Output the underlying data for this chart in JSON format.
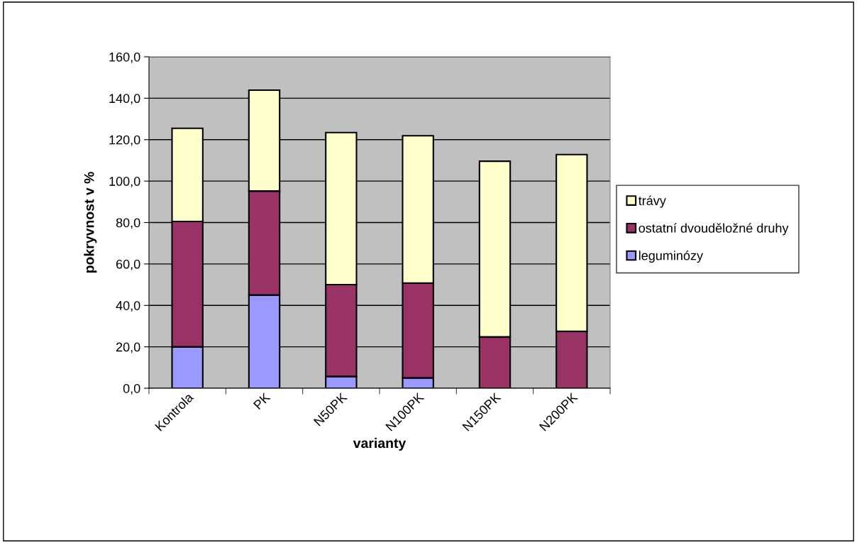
{
  "chart_data": {
    "type": "bar",
    "stacked": true,
    "xlabel": "varianty",
    "ylabel": "pokryvnost v %",
    "categories": [
      "Kontrola",
      "PK",
      "N50PK",
      "N100PK",
      "N150PK",
      "N200PK"
    ],
    "series": [
      {
        "name": "leguminózy",
        "color": "#9999ff",
        "values": [
          20.0,
          45.0,
          5.7,
          5.0,
          0.0,
          0.0
        ]
      },
      {
        "name": "ostatní dvouděložné druhy",
        "color": "#993366",
        "values": [
          60.5,
          50.2,
          44.3,
          45.8,
          24.8,
          27.5
        ]
      },
      {
        "name": "trávy",
        "color": "#ffffcc",
        "values": [
          45.0,
          48.7,
          73.4,
          71.1,
          84.8,
          85.3
        ]
      }
    ],
    "ylim": [
      0,
      160
    ],
    "yticks": [
      {
        "value": 0,
        "label": "0,0"
      },
      {
        "value": 20,
        "label": "20,0"
      },
      {
        "value": 40,
        "label": "40,0"
      },
      {
        "value": 60,
        "label": "60,0"
      },
      {
        "value": 80,
        "label": "80,0"
      },
      {
        "value": 100,
        "label": "100,0"
      },
      {
        "value": 120,
        "label": "120,0"
      },
      {
        "value": 140,
        "label": "140,0"
      },
      {
        "value": 160,
        "label": "160,0"
      }
    ],
    "grid": "y",
    "legend": "right"
  }
}
